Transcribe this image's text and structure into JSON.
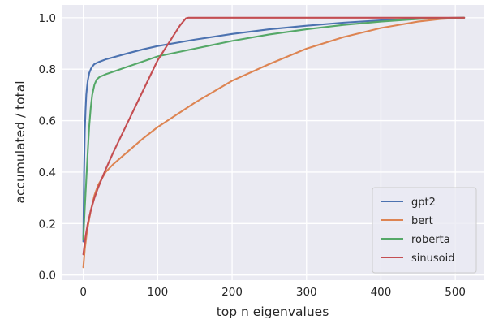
{
  "chart_data": {
    "type": "line",
    "xlabel": "top n eigenvalues",
    "ylabel": "accumulated / total",
    "xlim": [
      -28,
      538
    ],
    "ylim": [
      -0.02,
      1.05
    ],
    "xticks": [
      0,
      100,
      200,
      300,
      400,
      500
    ],
    "yticks": [
      0.0,
      0.2,
      0.4,
      0.6,
      0.8,
      1.0
    ],
    "xtick_labels": [
      "0",
      "100",
      "200",
      "300",
      "400",
      "500"
    ],
    "ytick_labels": [
      "0.0",
      "0.2",
      "0.4",
      "0.6",
      "0.8",
      "1.0"
    ],
    "grid": true,
    "background": "#eaeaf2",
    "legend_position": "lower-right",
    "series": [
      {
        "name": "gpt2",
        "color": "#4c72b0",
        "x": [
          0,
          1,
          2,
          3,
          4,
          5,
          6,
          8,
          10,
          12,
          15,
          20,
          30,
          40,
          60,
          80,
          100,
          150,
          200,
          250,
          300,
          350,
          400,
          450,
          480,
          512
        ],
        "y": [
          0.13,
          0.4,
          0.56,
          0.64,
          0.7,
          0.73,
          0.755,
          0.785,
          0.8,
          0.81,
          0.82,
          0.827,
          0.838,
          0.846,
          0.862,
          0.877,
          0.89,
          0.915,
          0.937,
          0.955,
          0.969,
          0.981,
          0.99,
          0.997,
          0.999,
          1.0
        ]
      },
      {
        "name": "bert",
        "color": "#dd8452",
        "x": [
          0,
          2,
          5,
          10,
          15,
          20,
          30,
          40,
          60,
          80,
          100,
          150,
          200,
          250,
          300,
          350,
          400,
          450,
          480,
          512
        ],
        "y": [
          0.03,
          0.1,
          0.17,
          0.25,
          0.31,
          0.35,
          0.4,
          0.43,
          0.48,
          0.53,
          0.575,
          0.67,
          0.755,
          0.82,
          0.88,
          0.925,
          0.96,
          0.985,
          0.995,
          1.0
        ]
      },
      {
        "name": "roberta",
        "color": "#55a868",
        "x": [
          0,
          2,
          4,
          6,
          8,
          10,
          12,
          15,
          18,
          22,
          30,
          40,
          60,
          80,
          100,
          150,
          200,
          250,
          300,
          350,
          400,
          450,
          480,
          512
        ],
        "y": [
          0.14,
          0.26,
          0.37,
          0.48,
          0.58,
          0.65,
          0.7,
          0.74,
          0.76,
          0.77,
          0.78,
          0.79,
          0.81,
          0.83,
          0.85,
          0.88,
          0.91,
          0.935,
          0.955,
          0.972,
          0.985,
          0.995,
          0.999,
          1.0
        ]
      },
      {
        "name": "sinusoid",
        "color": "#c44e52",
        "x": [
          0,
          3,
          6,
          10,
          15,
          20,
          30,
          40,
          50,
          60,
          70,
          80,
          90,
          100,
          110,
          120,
          130,
          138,
          141,
          200,
          300,
          400,
          512
        ],
        "y": [
          0.08,
          0.15,
          0.2,
          0.25,
          0.3,
          0.34,
          0.41,
          0.475,
          0.535,
          0.595,
          0.655,
          0.715,
          0.775,
          0.835,
          0.88,
          0.925,
          0.97,
          0.998,
          1.0,
          1.0,
          1.0,
          1.0,
          1.0
        ]
      }
    ]
  }
}
